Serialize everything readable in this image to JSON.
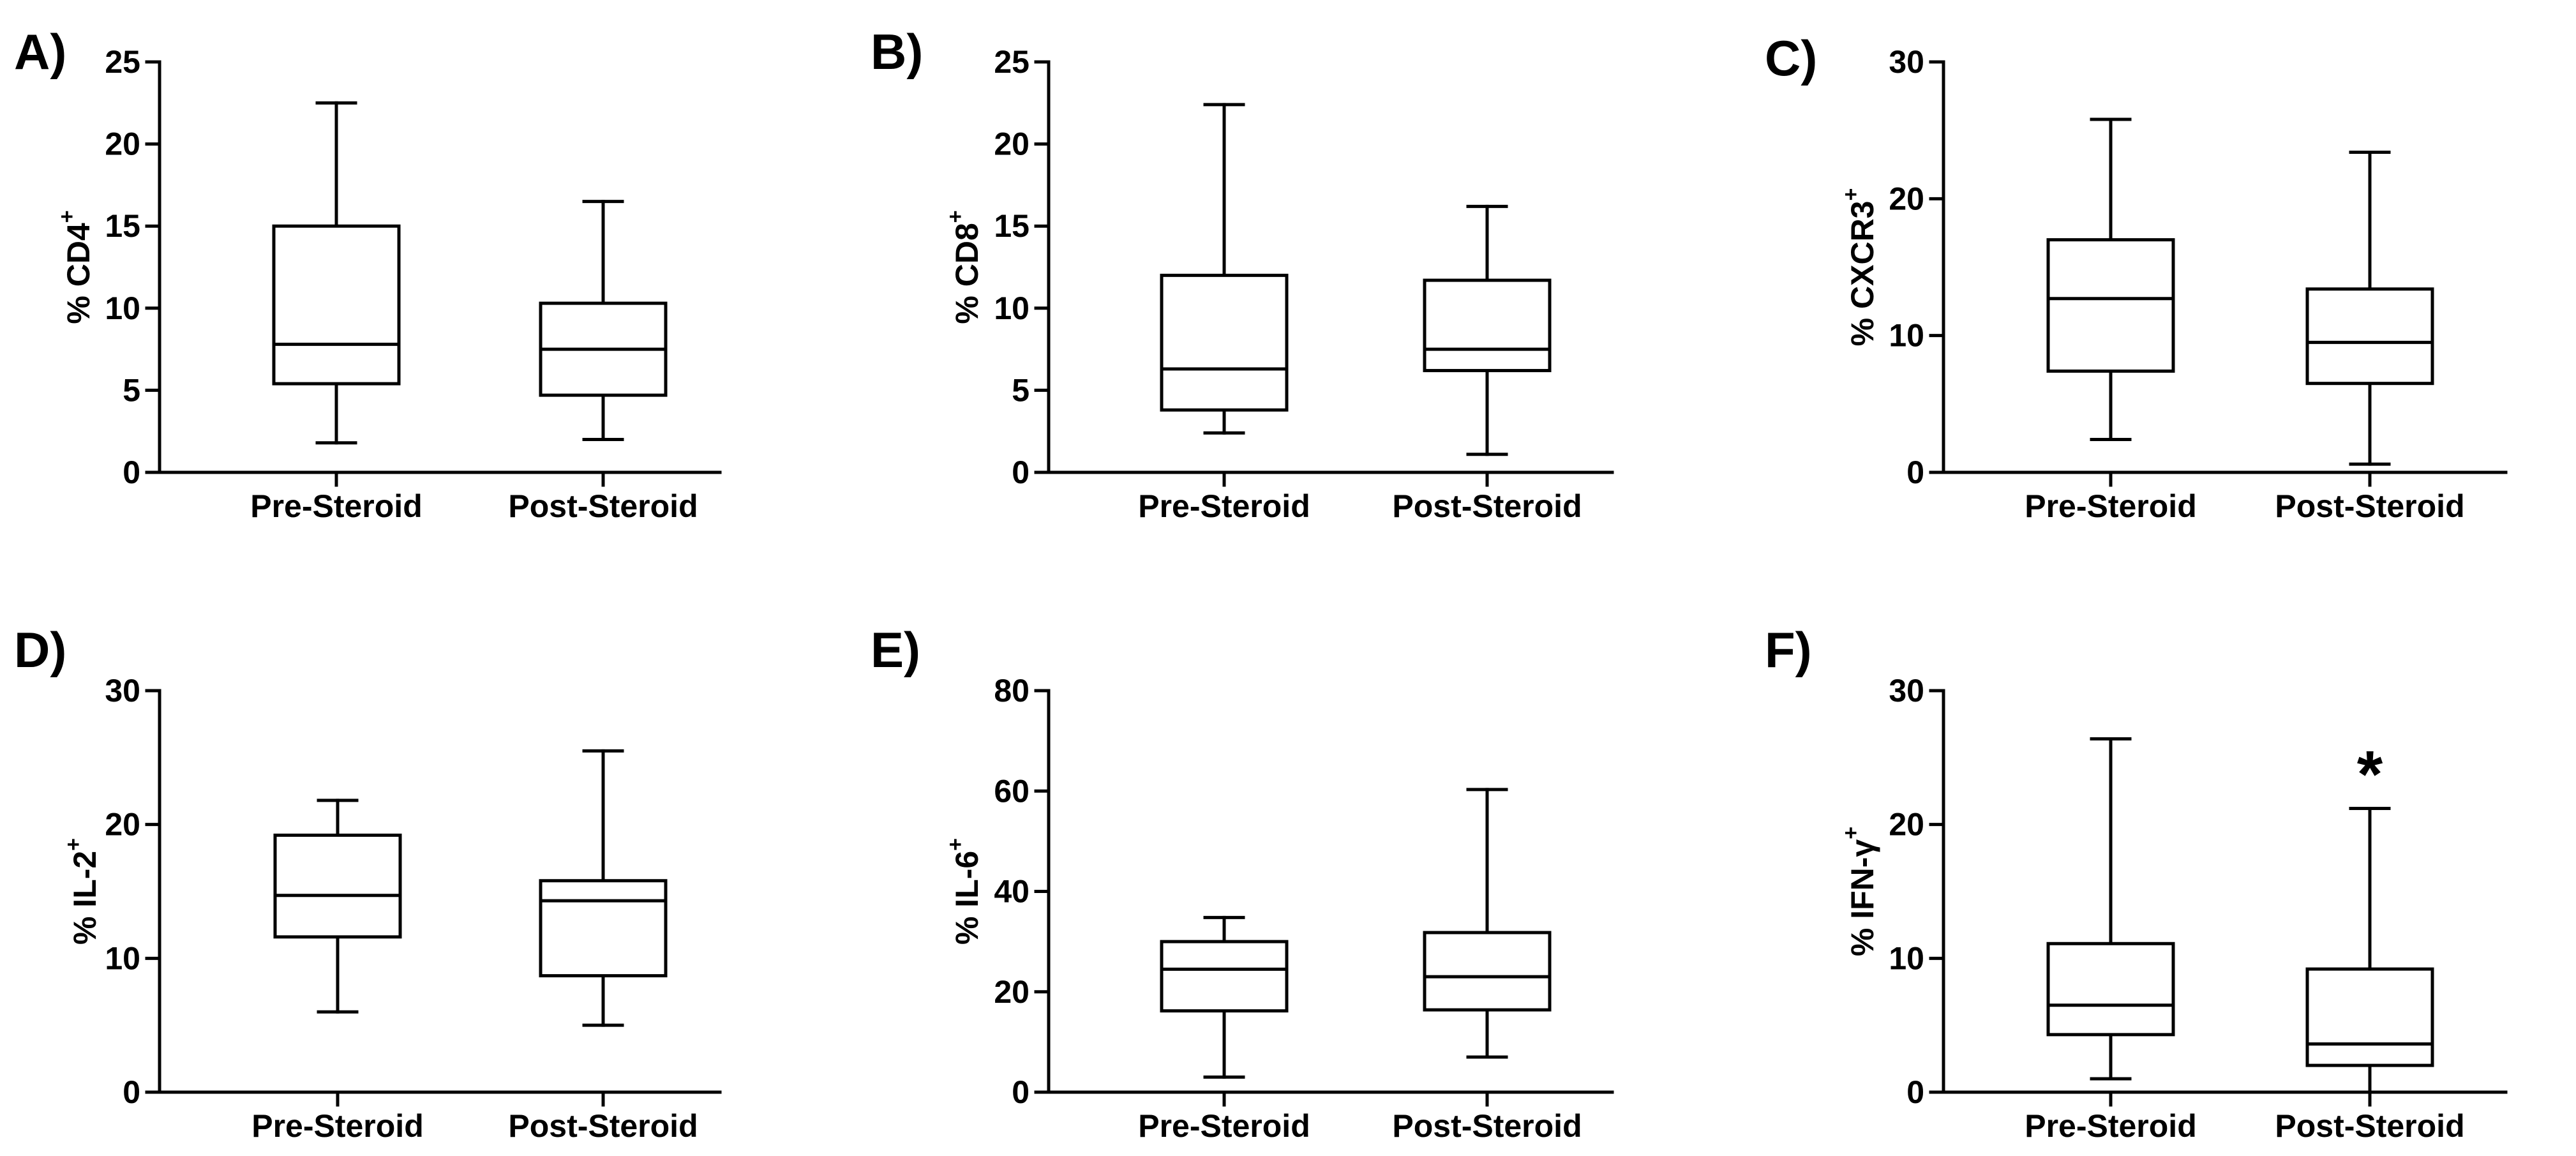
{
  "figure": {
    "description_title": "Pre- vs Post-Steroid percentages of immune cell markers",
    "colors": {
      "ink": "#000000",
      "background": "#ffffff",
      "box_fill": "#ffffff"
    }
  },
  "chart_data": [
    {
      "panel": "A)",
      "type": "boxplot",
      "title": "",
      "xlabel": "",
      "ylabel": "% CD4",
      "ylabel_superscript": "+",
      "ylim": [
        0,
        25
      ],
      "yticks": [
        0,
        5,
        10,
        15,
        20,
        25
      ],
      "grid": false,
      "categories": [
        "Pre-Steroid",
        "Post-Steroid"
      ],
      "series": [
        {
          "name": "Pre-Steroid",
          "min": 1.8,
          "q1": 5.4,
          "median": 7.8,
          "q3": 15.0,
          "max": 22.5
        },
        {
          "name": "Post-Steroid",
          "min": 2.0,
          "q1": 4.7,
          "median": 7.5,
          "q3": 10.3,
          "max": 16.5
        }
      ],
      "annotations": []
    },
    {
      "panel": "B)",
      "type": "boxplot",
      "title": "",
      "xlabel": "",
      "ylabel": "% CD8",
      "ylabel_superscript": "+",
      "ylim": [
        0,
        25
      ],
      "yticks": [
        0,
        5,
        10,
        15,
        20,
        25
      ],
      "grid": false,
      "categories": [
        "Pre-Steroid",
        "Post-Steroid"
      ],
      "series": [
        {
          "name": "Pre-Steroid",
          "min": 2.4,
          "q1": 3.8,
          "median": 6.3,
          "q3": 12.0,
          "max": 22.4
        },
        {
          "name": "Post-Steroid",
          "min": 1.1,
          "q1": 6.2,
          "median": 7.5,
          "q3": 11.7,
          "max": 16.2
        }
      ],
      "annotations": []
    },
    {
      "panel": "C)",
      "type": "boxplot",
      "title": "",
      "xlabel": "",
      "ylabel": "% CXCR3",
      "ylabel_superscript": "+",
      "ylim": [
        0,
        30
      ],
      "yticks": [
        0,
        10,
        20,
        30
      ],
      "grid": false,
      "categories": [
        "Pre-Steroid",
        "Post-Steroid"
      ],
      "series": [
        {
          "name": "Pre-Steroid",
          "min": 2.4,
          "q1": 7.4,
          "median": 12.7,
          "q3": 17.0,
          "max": 25.8
        },
        {
          "name": "Post-Steroid",
          "min": 0.6,
          "q1": 6.5,
          "median": 9.5,
          "q3": 13.4,
          "max": 23.4
        }
      ],
      "annotations": []
    },
    {
      "panel": "D)",
      "type": "boxplot",
      "title": "",
      "xlabel": "",
      "ylabel": "% IL-2",
      "ylabel_superscript": "+",
      "ylim": [
        0,
        30
      ],
      "yticks": [
        0,
        10,
        20,
        30
      ],
      "grid": false,
      "categories": [
        "Pre-Steroid",
        "Post-Steroid"
      ],
      "series": [
        {
          "name": "Pre-Steroid",
          "min": 6.0,
          "q1": 11.6,
          "median": 14.7,
          "q3": 19.2,
          "max": 21.8
        },
        {
          "name": "Post-Steroid",
          "min": 5.0,
          "q1": 8.7,
          "median": 14.3,
          "q3": 15.8,
          "max": 25.5
        }
      ],
      "annotations": []
    },
    {
      "panel": "E)",
      "type": "boxplot",
      "title": "",
      "xlabel": "",
      "ylabel": "% IL-6",
      "ylabel_superscript": "+",
      "ylim": [
        0,
        80
      ],
      "yticks": [
        0,
        20,
        40,
        60,
        80
      ],
      "grid": false,
      "categories": [
        "Pre-Steroid",
        "Post-Steroid"
      ],
      "series": [
        {
          "name": "Pre-Steroid",
          "min": 3.0,
          "q1": 16.2,
          "median": 24.5,
          "q3": 30.0,
          "max": 34.8
        },
        {
          "name": "Post-Steroid",
          "min": 7.0,
          "q1": 16.4,
          "median": 23.0,
          "q3": 31.8,
          "max": 60.3
        }
      ],
      "annotations": []
    },
    {
      "panel": "F)",
      "type": "boxplot",
      "title": "",
      "xlabel": "",
      "ylabel": "% IFN-γ",
      "ylabel_superscript": "+",
      "ylim": [
        0,
        30
      ],
      "yticks": [
        0,
        10,
        20,
        30
      ],
      "grid": false,
      "categories": [
        "Pre-Steroid",
        "Post-Steroid"
      ],
      "series": [
        {
          "name": "Pre-Steroid",
          "min": 1.0,
          "q1": 4.3,
          "median": 6.5,
          "q3": 11.1,
          "max": 26.4
        },
        {
          "name": "Post-Steroid",
          "min": 0.0,
          "q1": 2.0,
          "median": 3.6,
          "q3": 9.2,
          "max": 21.2
        }
      ],
      "annotations": [
        {
          "text": "*",
          "category": "Post-Steroid"
        }
      ]
    }
  ]
}
